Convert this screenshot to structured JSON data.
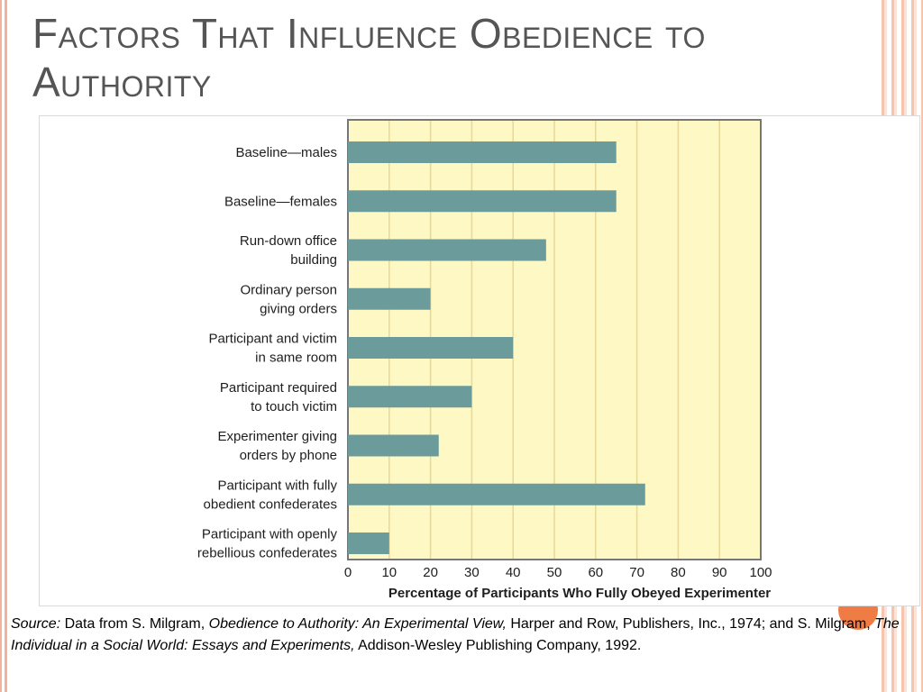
{
  "title": "Factors That Influence Obedience to Authority",
  "colors": {
    "bar": "#6b9b9b",
    "plot_background": "#fdf8c4",
    "gridline": "#e9d898",
    "accent": "#f07c45"
  },
  "chart_data": {
    "type": "bar",
    "orientation": "horizontal",
    "categories": [
      [
        "Baseline—males"
      ],
      [
        "Baseline—females"
      ],
      [
        "Run-down office",
        "building"
      ],
      [
        "Ordinary person",
        "giving orders"
      ],
      [
        "Participant and victim",
        "in same room"
      ],
      [
        "Participant required",
        "to touch victim"
      ],
      [
        "Experimenter giving",
        "orders by phone"
      ],
      [
        "Participant with fully",
        "obedient confederates"
      ],
      [
        "Participant with openly",
        "rebellious confederates"
      ]
    ],
    "values": [
      65,
      65,
      48,
      20,
      40,
      30,
      22,
      72,
      10
    ],
    "xlim": [
      0,
      100
    ],
    "xticks": [
      "0",
      "10",
      "20",
      "30",
      "40",
      "50",
      "60",
      "70",
      "80",
      "90",
      "100"
    ],
    "xlabel": "Percentage of Participants Who Fully Obeyed Experimenter",
    "ylabel": "",
    "grid": true
  },
  "source": {
    "label": "Source:",
    "p1": " Data from S. Milgram, ",
    "book1": "Obedience to Authority: An Experimental View,",
    "p2": " Harper and Row, Publishers, Inc., 1974; and S. Milgram, ",
    "book2": "The Individual in a Social World: Essays and Experiments,",
    "p3": " Addison-Wesley Publishing Company, 1992."
  }
}
